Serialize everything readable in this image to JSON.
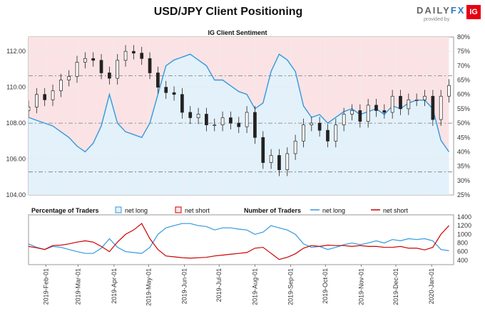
{
  "title": "USD/JPY Client Positioning",
  "brand": {
    "name_left": "DAILY",
    "name_right": "FX",
    "tagline": "provided by",
    "logo": "IG"
  },
  "main_panel": {
    "subtitle": "IG Client Sentiment",
    "left_ticks": [
      "104.00",
      "106.00",
      "108.00",
      "110.00",
      "112.00"
    ],
    "right_ticks": [
      "25%",
      "30%",
      "35%",
      "40%",
      "45%",
      "50%",
      "55%",
      "60%",
      "65%",
      "70%",
      "75%",
      "80%"
    ]
  },
  "legend": {
    "pct_title": "Percentage of Traders",
    "net_long": "net long",
    "net_short": "net short",
    "num_title": "Number of Traders",
    "num_long": "net long",
    "num_short": "net short"
  },
  "colors": {
    "long": "#3399dd",
    "short": "#cc0000",
    "long_fill": "#e3f1fb",
    "short_fill": "#fbe3e5",
    "candle": "#222222"
  },
  "chart_data": [
    {
      "type": "line",
      "title": "IG Client Sentiment",
      "price_axis": {
        "ylim": [
          104,
          112.8
        ],
        "ticks": [
          104,
          106,
          108,
          110,
          112
        ]
      },
      "pct_axis": {
        "ylim": [
          25,
          80
        ],
        "ticks": [
          25,
          30,
          35,
          40,
          45,
          50,
          55,
          60,
          65,
          70,
          75,
          80
        ],
        "unit": "%"
      },
      "x_ticks": [
        "2019-Feb-01",
        "2019-Mar-01",
        "2019-Apr-01",
        "2019-May-01",
        "2019-Jun-01",
        "2019-Jul-01",
        "2019-Aug-01",
        "2019-Sep-01",
        "2019-Oct-01",
        "2019-Nov-01",
        "2019-Dec-01",
        "2020-Jan-01"
      ],
      "x": [
        "2019-01-17",
        "2019-01-24",
        "2019-01-31",
        "2019-02-07",
        "2019-02-14",
        "2019-02-21",
        "2019-02-28",
        "2019-03-07",
        "2019-03-14",
        "2019-03-21",
        "2019-03-28",
        "2019-04-04",
        "2019-04-11",
        "2019-04-18",
        "2019-04-25",
        "2019-05-02",
        "2019-05-09",
        "2019-05-16",
        "2019-05-23",
        "2019-05-30",
        "2019-06-06",
        "2019-06-13",
        "2019-06-20",
        "2019-06-27",
        "2019-07-04",
        "2019-07-11",
        "2019-07-18",
        "2019-07-25",
        "2019-08-01",
        "2019-08-08",
        "2019-08-15",
        "2019-08-22",
        "2019-08-29",
        "2019-09-05",
        "2019-09-12",
        "2019-09-19",
        "2019-09-26",
        "2019-10-03",
        "2019-10-10",
        "2019-10-17",
        "2019-10-24",
        "2019-10-31",
        "2019-11-07",
        "2019-11-14",
        "2019-11-21",
        "2019-11-28",
        "2019-12-05",
        "2019-12-12",
        "2019-12-19",
        "2019-12-26",
        "2020-01-02",
        "2020-01-09",
        "2020-01-16"
      ],
      "series": [
        {
          "name": "USD/JPY",
          "values": [
            108.9,
            109.6,
            109.3,
            109.8,
            110.4,
            110.6,
            111.4,
            111.6,
            111.5,
            110.8,
            110.5,
            111.5,
            112.0,
            111.9,
            111.6,
            110.8,
            110.0,
            109.7,
            109.6,
            108.6,
            108.3,
            108.5,
            107.9,
            107.9,
            108.3,
            108.0,
            107.8,
            108.6,
            107.2,
            105.8,
            106.2,
            105.4,
            106.3,
            107.0,
            107.9,
            108.0,
            107.6,
            107.0,
            107.9,
            108.5,
            108.7,
            108.1,
            109.0,
            108.7,
            108.6,
            109.5,
            108.8,
            109.3,
            109.3,
            109.5,
            108.2,
            109.5,
            110.1
          ]
        },
        {
          "name": "net long",
          "values": [
            52,
            51,
            50,
            49,
            47,
            45,
            42,
            40,
            43,
            49,
            60,
            50,
            47,
            46,
            45,
            50,
            60,
            70,
            72,
            73,
            74,
            72,
            70,
            65,
            65,
            63,
            61,
            60,
            55,
            57,
            68,
            74,
            72,
            68,
            56,
            52,
            53,
            50,
            52,
            54,
            55,
            53,
            54,
            55,
            53,
            56,
            55,
            57,
            58,
            58,
            55,
            44,
            40
          ]
        }
      ]
    },
    {
      "type": "line",
      "title": "Number of Traders",
      "ylim": [
        300,
        1450
      ],
      "ticks": [
        400,
        600,
        800,
        1000,
        1200,
        1400
      ],
      "x": [
        "2019-01-17",
        "2019-01-24",
        "2019-01-31",
        "2019-02-07",
        "2019-02-14",
        "2019-02-21",
        "2019-02-28",
        "2019-03-07",
        "2019-03-14",
        "2019-03-21",
        "2019-03-28",
        "2019-04-04",
        "2019-04-11",
        "2019-04-18",
        "2019-04-25",
        "2019-05-02",
        "2019-05-09",
        "2019-05-16",
        "2019-05-23",
        "2019-05-30",
        "2019-06-06",
        "2019-06-13",
        "2019-06-20",
        "2019-06-27",
        "2019-07-04",
        "2019-07-11",
        "2019-07-18",
        "2019-07-25",
        "2019-08-01",
        "2019-08-08",
        "2019-08-15",
        "2019-08-22",
        "2019-08-29",
        "2019-09-05",
        "2019-09-12",
        "2019-09-19",
        "2019-09-26",
        "2019-10-03",
        "2019-10-10",
        "2019-10-17",
        "2019-10-24",
        "2019-10-31",
        "2019-11-07",
        "2019-11-14",
        "2019-11-21",
        "2019-11-28",
        "2019-12-05",
        "2019-12-12",
        "2019-12-19",
        "2019-12-26",
        "2020-01-02",
        "2020-01-09",
        "2020-01-16"
      ],
      "series": [
        {
          "name": "net long",
          "values": [
            780,
            700,
            650,
            720,
            700,
            650,
            600,
            560,
            560,
            680,
            900,
            700,
            600,
            580,
            560,
            700,
            1000,
            1150,
            1200,
            1250,
            1250,
            1200,
            1180,
            1100,
            1150,
            1150,
            1120,
            1100,
            1000,
            1050,
            1200,
            1150,
            1100,
            1000,
            780,
            700,
            720,
            650,
            700,
            760,
            800,
            760,
            800,
            850,
            800,
            880,
            850,
            900,
            880,
            900,
            850,
            650,
            620
          ]
        },
        {
          "name": "net short",
          "values": [
            720,
            690,
            650,
            740,
            750,
            780,
            820,
            850,
            820,
            720,
            600,
            820,
            1000,
            1100,
            1250,
            900,
            650,
            500,
            480,
            460,
            450,
            460,
            470,
            500,
            520,
            540,
            560,
            580,
            680,
            700,
            560,
            420,
            470,
            550,
            680,
            740,
            720,
            750,
            740,
            740,
            720,
            740,
            720,
            720,
            700,
            700,
            720,
            680,
            680,
            640,
            700,
            1000,
            1200
          ]
        }
      ]
    }
  ]
}
